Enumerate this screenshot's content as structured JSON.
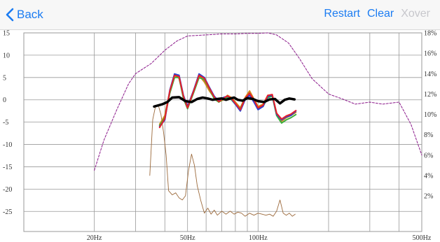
{
  "navbar": {
    "back_label": "Back",
    "restart_label": "Restart",
    "clear_label": "Clear",
    "xover_label": "Xover"
  },
  "colors": {
    "accent": "#1b7cf2",
    "disabled": "#c7c7cc",
    "grid": "#999999",
    "target_curve": "#8b1a8b",
    "avg_curve": "#000000",
    "red_curve": "#e8202a",
    "blue_curve": "#2b3fd0",
    "green_curve": "#3cae3c",
    "orange_curve": "#d58a1a",
    "brown_curve": "#9c6a3c"
  },
  "chart_data": {
    "type": "line",
    "x_scale": "log",
    "xlim": [
      10,
      500
    ],
    "ylim_left": [
      -29.5,
      15
    ],
    "ylim_right": [
      -1.5,
      18
    ],
    "grid": true,
    "x_tick_labels": [
      {
        "value": 20,
        "label": "20Hz"
      },
      {
        "value": 50,
        "label": "50Hz"
      },
      {
        "value": 100,
        "label": "100Hz"
      },
      {
        "value": 500,
        "label": "500Hz"
      }
    ],
    "x_gridlines": [
      20,
      30,
      40,
      50,
      60,
      70,
      80,
      90,
      100,
      200,
      300,
      400,
      500
    ],
    "y_left_ticks": [
      15,
      10,
      5,
      0,
      -5,
      -10,
      -15,
      -20,
      -25
    ],
    "y_right_ticks": [
      {
        "value": 18,
        "label": "18%"
      },
      {
        "value": 16,
        "label": "16%"
      },
      {
        "value": 14,
        "label": "14%"
      },
      {
        "value": 12,
        "label": "12%"
      },
      {
        "value": 10,
        "label": "10%"
      },
      {
        "value": 8,
        "label": "8%"
      },
      {
        "value": 6,
        "label": "6%"
      },
      {
        "value": 4,
        "label": "4%"
      },
      {
        "value": 2,
        "label": "2%"
      }
    ],
    "series": [
      {
        "id": "target",
        "axis": "right",
        "style": "dashed",
        "color_key": "target_curve",
        "width": 1,
        "x": [
          20,
          22,
          25,
          28,
          30,
          35,
          40,
          45,
          50,
          60,
          70,
          80,
          90,
          100,
          110,
          120,
          135,
          150,
          170,
          200,
          230,
          260,
          300,
          340,
          400,
          450,
          500
        ],
        "y": [
          4.5,
          7.5,
          10.5,
          13.0,
          14.0,
          15.0,
          16.3,
          17.2,
          17.7,
          17.8,
          17.9,
          17.9,
          17.95,
          17.95,
          18.0,
          17.8,
          17.0,
          15.5,
          13.5,
          12.0,
          11.5,
          11.0,
          11.2,
          11.0,
          11.2,
          9.0,
          6.0
        ]
      },
      {
        "id": "brown",
        "axis": "right",
        "style": "solid",
        "color_key": "brown_curve",
        "width": 0.9,
        "x": [
          34.5,
          35.5,
          36.5,
          37.5,
          38.5,
          39.5,
          40.5,
          41.5,
          43,
          44.5,
          46,
          47.5,
          49,
          50.5,
          52,
          53.5,
          55,
          57,
          59,
          61,
          63,
          65,
          67,
          70,
          73,
          76,
          79,
          82,
          85,
          88,
          92,
          96,
          100,
          104,
          108,
          112,
          116,
          120,
          124,
          128,
          132,
          136,
          140,
          144
        ],
        "y": [
          4.0,
          9.5,
          10.8,
          10.9,
          10.0,
          8.2,
          6.0,
          2.5,
          2.1,
          2.3,
          1.8,
          1.6,
          2.0,
          4.5,
          6.1,
          5.0,
          3.0,
          1.5,
          0.3,
          0.8,
          0.2,
          0.6,
          0.1,
          0.5,
          0.2,
          0.5,
          0.2,
          0.4,
          0.3,
          0.0,
          0.3,
          0.1,
          0.3,
          0.2,
          0.1,
          0.2,
          0.0,
          0.5,
          1.6,
          0.3,
          0.1,
          0.3,
          0.0,
          0.2
        ]
      },
      {
        "id": "orange",
        "axis": "left",
        "style": "solid",
        "color_key": "orange_curve",
        "width": 2,
        "x": [
          38,
          40,
          42,
          44,
          46,
          48,
          50,
          53,
          56,
          59,
          62,
          65,
          68,
          71,
          74,
          77,
          80,
          84,
          88,
          92,
          96,
          100,
          105,
          110,
          115,
          120,
          126,
          132,
          138,
          145
        ],
        "y": [
          -5.5,
          -3.5,
          2.0,
          5.5,
          4.8,
          0.8,
          -1.5,
          2.0,
          5.5,
          4.0,
          2.0,
          0.5,
          -0.5,
          0.0,
          1.0,
          0.5,
          -0.5,
          -1.8,
          0.5,
          2.0,
          0.2,
          -1.5,
          -1.0,
          1.0,
          1.0,
          -3.0,
          -4.8,
          -4.0,
          -3.5,
          -2.8
        ]
      },
      {
        "id": "green",
        "axis": "left",
        "style": "solid",
        "color_key": "green_curve",
        "width": 2,
        "x": [
          38,
          40,
          42,
          44,
          46,
          48,
          50,
          53,
          56,
          59,
          62,
          65,
          68,
          71,
          74,
          77,
          80,
          84,
          88,
          92,
          96,
          100,
          105,
          110,
          115,
          120,
          126,
          132,
          138,
          145
        ],
        "y": [
          -5.8,
          -4.0,
          1.5,
          5.0,
          5.0,
          0.3,
          -2.0,
          1.5,
          5.0,
          4.5,
          2.5,
          0.2,
          -0.5,
          0.2,
          0.5,
          0.0,
          -1.0,
          -2.0,
          0.2,
          1.5,
          -0.2,
          -2.0,
          -1.5,
          0.5,
          0.8,
          -3.5,
          -5.2,
          -4.5,
          -4.0,
          -3.3
        ]
      },
      {
        "id": "blue",
        "axis": "left",
        "style": "solid",
        "color_key": "blue_curve",
        "width": 2,
        "x": [
          38,
          40,
          42,
          44,
          46,
          48,
          50,
          53,
          56,
          59,
          62,
          65,
          68,
          71,
          74,
          77,
          80,
          84,
          88,
          92,
          96,
          100,
          105,
          110,
          115,
          120,
          126,
          132,
          138,
          145
        ],
        "y": [
          -6.0,
          -4.5,
          2.2,
          5.8,
          5.5,
          1.0,
          -1.5,
          2.0,
          5.8,
          5.0,
          2.8,
          0.8,
          -0.3,
          0.5,
          0.8,
          0.2,
          -1.0,
          -2.5,
          0.0,
          1.0,
          -0.5,
          -2.2,
          -1.5,
          0.8,
          1.0,
          -3.2,
          -4.5,
          -3.8,
          -3.5,
          -2.5
        ]
      },
      {
        "id": "red",
        "axis": "left",
        "style": "solid",
        "color_key": "red_curve",
        "width": 2,
        "x": [
          38,
          40,
          42,
          44,
          46,
          48,
          50,
          53,
          56,
          59,
          62,
          65,
          68,
          71,
          74,
          77,
          80,
          84,
          88,
          92,
          96,
          100,
          105,
          110,
          115,
          120,
          126,
          132,
          138,
          145
        ],
        "y": [
          -6.2,
          -4.2,
          2.0,
          5.5,
          5.2,
          0.8,
          -1.8,
          1.8,
          5.5,
          4.8,
          2.6,
          0.6,
          -0.4,
          0.3,
          0.9,
          0.3,
          -0.8,
          -2.2,
          0.3,
          1.5,
          0.0,
          -1.8,
          -1.2,
          1.0,
          1.2,
          -3.0,
          -4.3,
          -3.6,
          -3.2,
          -2.4
        ]
      },
      {
        "id": "average",
        "axis": "left",
        "style": "solid",
        "color_key": "avg_curve",
        "width": 3.5,
        "x": [
          36,
          39,
          41,
          43,
          46,
          49,
          52,
          55,
          58,
          61,
          64,
          67,
          70,
          73,
          76,
          79,
          82,
          86,
          90,
          95,
          100,
          106,
          112,
          118,
          124,
          130,
          136,
          143
        ],
        "y": [
          -1.5,
          -1.0,
          -0.5,
          0.5,
          0.6,
          -0.3,
          -0.5,
          0.2,
          0.5,
          0.3,
          0.0,
          0.2,
          0.3,
          0.0,
          0.3,
          0.5,
          0.0,
          -0.2,
          0.4,
          0.2,
          -0.3,
          -0.5,
          0.1,
          0.2,
          -0.8,
          0.0,
          0.3,
          0.1
        ]
      }
    ]
  }
}
